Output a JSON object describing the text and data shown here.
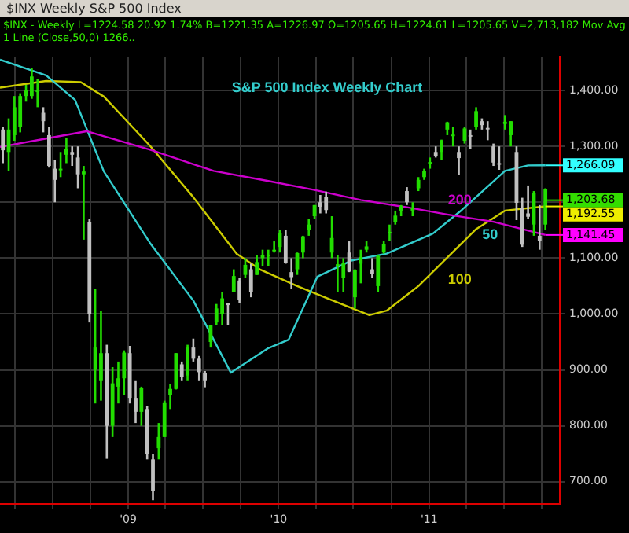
{
  "chart_data": {
    "type": "candlestick",
    "title": "S&P 500 Index Weekly Chart",
    "subtitle": "$INX - Weekly  L=1224.58  20.92  1.74%  B=1221.35  A=1226.97  O=1205.65  H=1224.61  L=1205.65  V=2,713,182  Mov Avg 1 Line (Close,50,0)  1266..",
    "annotations": [
      "$INX Weekly S&P 500 Index",
      {
        "text": "1,266.09",
        "x": "2011-10-10",
        "y": 1266.09
      },
      {
        "text": "1,203.68",
        "x": "2011-10-10",
        "y": 1203.68
      },
      {
        "text": "1,192.55",
        "x": "2011-10-10",
        "y": 1192.55
      },
      {
        "text": "1,141.45",
        "x": "2011-10-10",
        "y": 1141.45
      }
    ],
    "colors": [
      "#c0c0c0",
      "#22dd00",
      "#22dd00",
      "#22dd00",
      "#22dd00",
      "#22dd00",
      "#22dd00",
      "#c0c0c0",
      "#c0c0c0",
      "#c0c0c0",
      "#22dd00",
      "#22dd00",
      "#c0c0c0",
      "#c0c0c0",
      "#22dd00",
      "#c0c0c0",
      "#22dd00",
      "#22dd00",
      "#c0c0c0",
      "#22dd00",
      "#22dd00",
      "#22dd00",
      "#c0c0c0",
      "#c0c0c0",
      "#22dd00",
      "#c0c0c0",
      "#c0c0c0",
      "#22dd00",
      "#22dd00",
      "#22dd00",
      "#22dd00",
      "#c0c0c0",
      "#22dd00",
      "#c0c0c0",
      "#c0c0c0",
      "#c0c0c0",
      "#22dd00",
      "#22dd00",
      "#22dd00",
      "#c0c0c0",
      "#22dd00",
      "#c0c0c0",
      "#22dd00",
      "#c0c0c0",
      "#22dd00",
      "#22dd00",
      "#22dd00",
      "#22dd00",
      "#22dd00",
      "#c0c0c0",
      "#c0c0c0",
      "#22dd00",
      "#22dd00",
      "#22dd00",
      "#22dd00",
      "#c0c0c0",
      "#c0c0c0",
      "#22dd00",
      "#22dd00",
      "#22dd00",
      "#c0c0c0",
      "#22dd00",
      "#22dd00",
      "#22dd00",
      "#c0c0c0",
      "#22dd00",
      "#22dd00",
      "#22dd00",
      "#22dd00",
      "#22dd00",
      "#c0c0c0",
      "#22dd00",
      "#22dd00",
      "#22dd00",
      "#22dd00",
      "#c0c0c0",
      "#22dd00",
      "#22dd00",
      "#22dd00",
      "#c0c0c0",
      "#22dd00",
      "#c0c0c0",
      "#22dd00",
      "#c0c0c0",
      "#c0c0c0",
      "#c0c0c0",
      "#c0c0c0",
      "#22dd00",
      "#22dd00",
      "#c0c0c0",
      "#c0c0c0",
      "#c0c0c0",
      "#22dd00",
      "#c0c0c0",
      "#22dd00"
    ],
    "grid": true,
    "marker": "none",
    "xlim": [
      "2008-02-25",
      "2011-11-14"
    ],
    "xticks": [
      {
        "value": "2008-04-01",
        "label": null
      },
      {
        "value": "2008-07-01",
        "label": null
      },
      {
        "value": "2008-10-01",
        "label": null
      },
      {
        "value": "2009-01-01",
        "label": "'09"
      },
      {
        "value": "2009-04-01",
        "label": null
      },
      {
        "value": "2009-07-01",
        "label": null
      },
      {
        "value": "2009-10-01",
        "label": null
      },
      {
        "value": "2010-01-01",
        "label": "'10"
      },
      {
        "value": "2010-04-01",
        "label": null
      },
      {
        "value": "2010-07-01",
        "label": null
      },
      {
        "value": "2010-10-01",
        "label": null
      },
      {
        "value": "2011-01-01",
        "label": "'11"
      },
      {
        "value": "2011-04-01",
        "label": null
      },
      {
        "value": "2011-07-01",
        "label": null
      },
      {
        "value": "2011-10-01",
        "label": null
      }
    ],
    "ylim": [
      660,
      1460
    ],
    "yticks": [
      {
        "value": 700,
        "label": "700.00"
      },
      {
        "value": 800,
        "label": "800.00"
      },
      {
        "value": 900,
        "label": "900.00"
      },
      {
        "value": 1000,
        "label": "1,000.00"
      },
      {
        "value": 1100,
        "label": "1,100.00"
      },
      {
        "value": 1200,
        "label": null
      },
      {
        "value": 1300,
        "label": "1,300.00"
      },
      {
        "value": 1400,
        "label": "1,400.00"
      }
    ],
    "x": [
      "2008-03-03",
      "2008-03-17",
      "2008-03-31",
      "2008-04-14",
      "2008-04-28",
      "2008-05-12",
      "2008-05-26",
      "2008-06-09",
      "2008-06-23",
      "2008-07-07",
      "2008-07-21",
      "2008-08-04",
      "2008-08-18",
      "2008-09-01",
      "2008-09-15",
      "2008-09-29",
      "2008-10-13",
      "2008-10-27",
      "2008-11-10",
      "2008-11-24",
      "2008-12-08",
      "2008-12-22",
      "2009-01-05",
      "2009-01-19",
      "2009-02-02",
      "2009-02-16",
      "2009-03-02",
      "2009-03-16",
      "2009-03-30",
      "2009-04-13",
      "2009-04-27",
      "2009-05-11",
      "2009-05-25",
      "2009-06-08",
      "2009-06-22",
      "2009-07-06",
      "2009-07-20",
      "2009-08-03",
      "2009-08-17",
      "2009-08-31",
      "2009-09-14",
      "2009-09-28",
      "2009-10-12",
      "2009-10-26",
      "2009-11-09",
      "2009-11-23",
      "2009-12-07",
      "2009-12-21",
      "2010-01-04",
      "2010-01-18",
      "2010-02-01",
      "2010-02-15",
      "2010-03-01",
      "2010-03-15",
      "2010-03-29",
      "2010-04-12",
      "2010-04-26",
      "2010-05-10",
      "2010-05-24",
      "2010-06-07",
      "2010-06-21",
      "2010-07-05",
      "2010-07-19",
      "2010-08-02",
      "2010-08-16",
      "2010-08-30",
      "2010-09-13",
      "2010-09-27",
      "2010-10-11",
      "2010-10-25",
      "2010-11-08",
      "2010-11-22",
      "2010-12-06",
      "2010-12-20",
      "2011-01-03",
      "2011-01-17",
      "2011-01-31",
      "2011-02-14",
      "2011-02-28",
      "2011-03-14",
      "2011-03-28",
      "2011-04-11",
      "2011-04-25",
      "2011-05-09",
      "2011-05-23",
      "2011-06-06",
      "2011-06-20",
      "2011-07-04",
      "2011-07-18",
      "2011-08-01",
      "2011-08-15",
      "2011-08-29",
      "2011-09-12",
      "2011-09-26",
      "2011-10-10"
    ],
    "ohlc": [
      [
        1330,
        1335,
        1270,
        1293
      ],
      [
        1290,
        1350,
        1256,
        1330
      ],
      [
        1320,
        1390,
        1310,
        1370
      ],
      [
        1335,
        1395,
        1325,
        1390
      ],
      [
        1390,
        1410,
        1380,
        1400
      ],
      [
        1390,
        1440,
        1385,
        1425
      ],
      [
        1400,
        1420,
        1370,
        1400
      ],
      [
        1360,
        1370,
        1325,
        1345
      ],
      [
        1320,
        1335,
        1262,
        1265
      ],
      [
        1260,
        1275,
        1200,
        1240
      ],
      [
        1260,
        1290,
        1245,
        1260
      ],
      [
        1285,
        1315,
        1270,
        1295
      ],
      [
        1290,
        1300,
        1265,
        1285
      ],
      [
        1280,
        1300,
        1225,
        1250
      ],
      [
        1250,
        1265,
        1133,
        1255
      ],
      [
        1165,
        1170,
        985,
        1000
      ],
      [
        900,
        1045,
        840,
        940
      ],
      [
        880,
        1005,
        845,
        930
      ],
      [
        930,
        945,
        741,
        800
      ],
      [
        800,
        905,
        780,
        876
      ],
      [
        870,
        915,
        840,
        885
      ],
      [
        885,
        935,
        855,
        931
      ],
      [
        930,
        943,
        840,
        850
      ],
      [
        850,
        880,
        805,
        825
      ],
      [
        825,
        870,
        800,
        868
      ],
      [
        830,
        835,
        740,
        750
      ],
      [
        740,
        750,
        667,
        683
      ],
      [
        760,
        805,
        740,
        780
      ],
      [
        780,
        845,
        780,
        842
      ],
      [
        855,
        875,
        830,
        866
      ],
      [
        866,
        930,
        865,
        930
      ],
      [
        910,
        915,
        880,
        888
      ],
      [
        890,
        945,
        880,
        940
      ],
      [
        940,
        956,
        915,
        920
      ],
      [
        920,
        925,
        880,
        896
      ],
      [
        895,
        898,
        869,
        880
      ],
      [
        950,
        980,
        940,
        980
      ],
      [
        985,
        1018,
        980,
        1010
      ],
      [
        1000,
        1040,
        980,
        1028
      ],
      [
        1020,
        1020,
        980,
        1016
      ],
      [
        1040,
        1080,
        1040,
        1068
      ],
      [
        1060,
        1065,
        1020,
        1025
      ],
      [
        1070,
        1100,
        1065,
        1088
      ],
      [
        1080,
        1090,
        1030,
        1040
      ],
      [
        1070,
        1105,
        1070,
        1093
      ],
      [
        1100,
        1115,
        1085,
        1106
      ],
      [
        1105,
        1115,
        1085,
        1106
      ],
      [
        1115,
        1130,
        1110,
        1115
      ],
      [
        1120,
        1150,
        1110,
        1145
      ],
      [
        1140,
        1150,
        1090,
        1092
      ],
      [
        1075,
        1100,
        1045,
        1066
      ],
      [
        1080,
        1110,
        1070,
        1109
      ],
      [
        1110,
        1140,
        1100,
        1139
      ],
      [
        1150,
        1170,
        1140,
        1160
      ],
      [
        1175,
        1195,
        1170,
        1195
      ],
      [
        1200,
        1213,
        1180,
        1192
      ],
      [
        1210,
        1219,
        1180,
        1186
      ],
      [
        1110,
        1175,
        1100,
        1136
      ],
      [
        1085,
        1105,
        1040,
        1089
      ],
      [
        1065,
        1100,
        1040,
        1091
      ],
      [
        1110,
        1130,
        1075,
        1076
      ],
      [
        1030,
        1080,
        1010,
        1078
      ],
      [
        1090,
        1115,
        1055,
        1102
      ],
      [
        1115,
        1130,
        1110,
        1121
      ],
      [
        1080,
        1100,
        1065,
        1071
      ],
      [
        1050,
        1105,
        1040,
        1104
      ],
      [
        1110,
        1130,
        1108,
        1125
      ],
      [
        1145,
        1160,
        1130,
        1147
      ],
      [
        1165,
        1185,
        1160,
        1176
      ],
      [
        1185,
        1195,
        1175,
        1193
      ],
      [
        1220,
        1227,
        1195,
        1200
      ],
      [
        1185,
        1200,
        1175,
        1190
      ],
      [
        1225,
        1245,
        1220,
        1240
      ],
      [
        1245,
        1260,
        1240,
        1256
      ],
      [
        1270,
        1280,
        1260,
        1272
      ],
      [
        1290,
        1300,
        1280,
        1283
      ],
      [
        1290,
        1312,
        1276,
        1311
      ],
      [
        1330,
        1344,
        1320,
        1343
      ],
      [
        1320,
        1335,
        1300,
        1321
      ],
      [
        1290,
        1300,
        1249,
        1279
      ],
      [
        1310,
        1335,
        1305,
        1332
      ],
      [
        1320,
        1330,
        1295,
        1319
      ],
      [
        1335,
        1370,
        1330,
        1363
      ],
      [
        1345,
        1350,
        1330,
        1338
      ],
      [
        1333,
        1345,
        1311,
        1331
      ],
      [
        1300,
        1305,
        1265,
        1271
      ],
      [
        1270,
        1300,
        1258,
        1268
      ],
      [
        1340,
        1356,
        1330,
        1344
      ],
      [
        1320,
        1345,
        1300,
        1345
      ],
      [
        1290,
        1300,
        1168,
        1199
      ],
      [
        1190,
        1208,
        1120,
        1124
      ],
      [
        1180,
        1230,
        1170,
        1174
      ],
      [
        1160,
        1220,
        1140,
        1216
      ],
      [
        1140,
        1195,
        1115,
        1131
      ],
      [
        1160,
        1225,
        1150,
        1224
      ]
    ],
    "series": [
      {
        "name": "200",
        "type": "line",
        "color": "#cc00cc",
        "x": [
          "2008-02-25",
          "2008-06-16",
          "2008-09-22",
          "2009-02-23",
          "2009-07-27",
          "2009-12-07",
          "2010-03-29",
          "2010-07-19",
          "2010-11-08",
          "2011-02-14",
          "2011-06-06",
          "2011-10-10"
        ],
        "values": [
          1299,
          1314,
          1327,
          1294,
          1256,
          1238,
          1222,
          1204,
          1191,
          1178,
          1165,
          1141.45
        ]
      },
      {
        "name": "50",
        "type": "line",
        "color": "#33cccc",
        "x": [
          "2008-02-25",
          "2008-06-16",
          "2008-08-25",
          "2008-11-03",
          "2009-02-23",
          "2009-06-08",
          "2009-09-07",
          "2009-12-07",
          "2010-01-25",
          "2010-04-05",
          "2010-06-28",
          "2010-09-20",
          "2011-01-10",
          "2011-03-21",
          "2011-07-04",
          "2011-08-29",
          "2011-10-10"
        ],
        "values": [
          1455,
          1427,
          1383,
          1255,
          1127,
          1024,
          895,
          939,
          954,
          1067,
          1096,
          1108,
          1144,
          1186,
          1256,
          1266,
          1266.09
        ]
      },
      {
        "name": "100",
        "type": "line",
        "color": "#cccc00",
        "x": [
          "2008-02-25",
          "2008-06-16",
          "2008-09-08",
          "2008-11-03",
          "2009-02-23",
          "2009-06-08",
          "2009-09-21",
          "2009-11-16",
          "2010-02-15",
          "2010-04-26",
          "2010-08-09",
          "2010-09-20",
          "2010-12-06",
          "2011-02-14",
          "2011-04-25",
          "2011-07-04",
          "2011-10-10"
        ],
        "values": [
          1405,
          1417,
          1415,
          1389,
          1301,
          1209,
          1108,
          1080,
          1050,
          1029,
          998,
          1006,
          1050,
          1101,
          1152,
          1185,
          1192.55
        ]
      }
    ]
  }
}
